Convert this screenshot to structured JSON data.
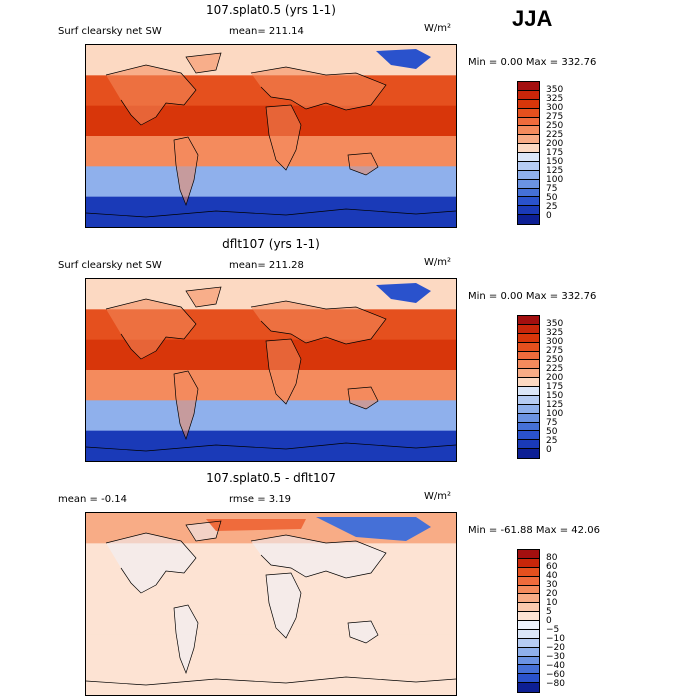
{
  "season": "JJA",
  "units_label": "W/m²",
  "chart_data": [
    {
      "type": "heatmap",
      "title": "107.splat0.5 (yrs 1-1)",
      "subtitle": "Surf clearsky net SW",
      "stat_label": "mean= 211.14",
      "min_max": "Min =    0.00 Max = 332.76",
      "colorbar_levels": [
        "350",
        "325",
        "300",
        "275",
        "250",
        "225",
        "200",
        "175",
        "150",
        "125",
        "100",
        "75",
        "50",
        "25",
        "0"
      ],
      "colors": [
        "#a30f0f",
        "#c8260a",
        "#d8360a",
        "#e5501e",
        "#ef6b3c",
        "#f48b5d",
        "#f8ac86",
        "#fcd9c2",
        "#dbe6f8",
        "#b6ccf3",
        "#8fb0ec",
        "#6b93e3",
        "#4570d7",
        "#2a52cc",
        "#1a3ab8",
        "#0d1f94"
      ],
      "bands": [
        {
          "lat": "60–90N",
          "value": 175
        },
        {
          "lat": "30–60N",
          "value": 290
        },
        {
          "lat": "0–30N",
          "value": 305
        },
        {
          "lat": "0–30S",
          "value": 240
        },
        {
          "lat": "30–60S",
          "value": 110
        },
        {
          "lat": "60–90S",
          "value": 0
        }
      ]
    },
    {
      "type": "heatmap",
      "title": "dflt107 (yrs 1-1)",
      "subtitle": "Surf clearsky net SW",
      "stat_label": "mean= 211.28",
      "min_max": "Min =    0.00 Max = 332.76",
      "colorbar_levels": [
        "350",
        "325",
        "300",
        "275",
        "250",
        "225",
        "200",
        "175",
        "150",
        "125",
        "100",
        "75",
        "50",
        "25",
        "0"
      ],
      "colors": [
        "#a30f0f",
        "#c8260a",
        "#d8360a",
        "#e5501e",
        "#ef6b3c",
        "#f48b5d",
        "#f8ac86",
        "#fcd9c2",
        "#dbe6f8",
        "#b6ccf3",
        "#8fb0ec",
        "#6b93e3",
        "#4570d7",
        "#2a52cc",
        "#1a3ab8",
        "#0d1f94"
      ],
      "bands": [
        {
          "lat": "60–90N",
          "value": 175
        },
        {
          "lat": "30–60N",
          "value": 290
        },
        {
          "lat": "0–30N",
          "value": 305
        },
        {
          "lat": "0–30S",
          "value": 240
        },
        {
          "lat": "30–60S",
          "value": 110
        },
        {
          "lat": "60–90S",
          "value": 0
        }
      ]
    },
    {
      "type": "heatmap",
      "title": "107.splat0.5 - dflt107",
      "subtitle": "mean =   -0.14",
      "stat_label": "rmse =    3.19",
      "min_max": "Min = -61.88 Max =  42.06",
      "colorbar_levels": [
        "80",
        "60",
        "40",
        "30",
        "20",
        "10",
        "5",
        "0",
        "−5",
        "−10",
        "−20",
        "−30",
        "−40",
        "−60",
        "−80"
      ],
      "colors": [
        "#a30f0f",
        "#c8260a",
        "#e5501e",
        "#ef6b3c",
        "#f48b5d",
        "#f8ac86",
        "#fbc9ad",
        "#fde3d3",
        "#eef3fc",
        "#dbe6f8",
        "#b6ccf3",
        "#8fb0ec",
        "#6b93e3",
        "#4570d7",
        "#2a52cc",
        "#0d1f94"
      ],
      "bands": [
        {
          "lat": "60–90N",
          "value": 10
        },
        {
          "lat": "30–60N",
          "value": 0
        },
        {
          "lat": "0–30N",
          "value": 2
        },
        {
          "lat": "0–30S",
          "value": 2
        },
        {
          "lat": "30–60S",
          "value": 2
        },
        {
          "lat": "60–90S",
          "value": 2
        }
      ]
    }
  ]
}
